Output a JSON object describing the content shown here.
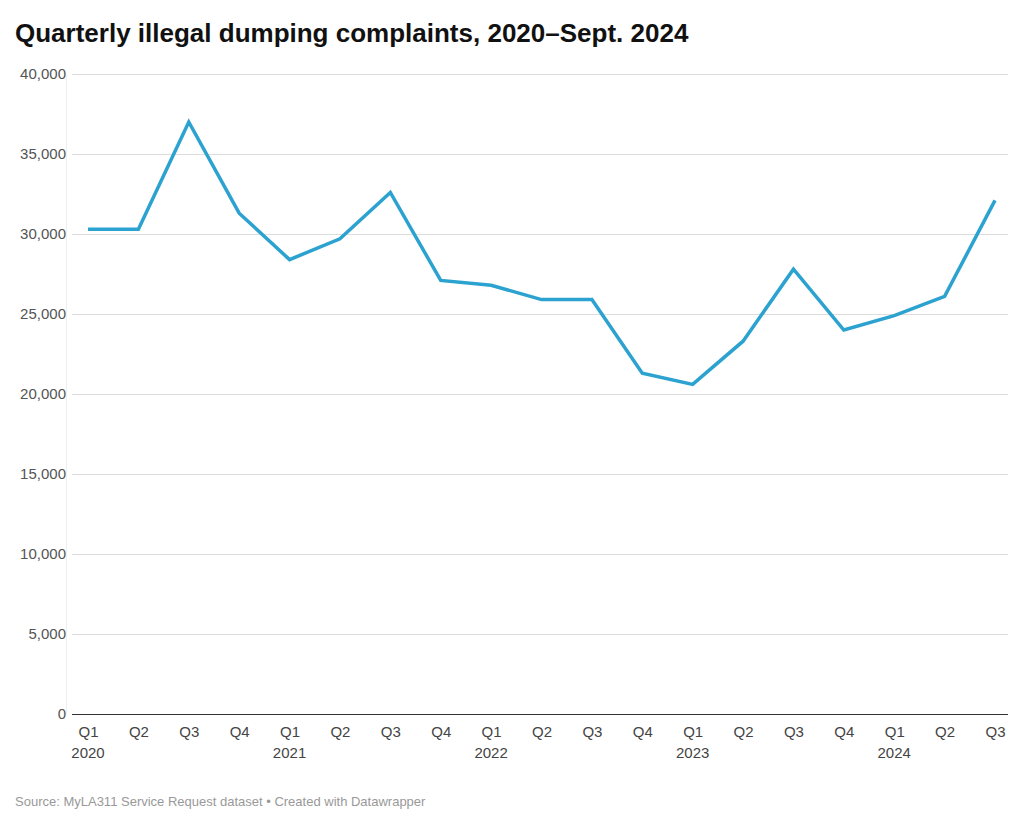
{
  "chart_data": {
    "type": "line",
    "title": "Quarterly illegal dumping complaints, 2020–Sept. 2024",
    "source": "Source: MyLA311 Service Request dataset • Created with Datawrapper",
    "categories": [
      "Q1",
      "Q2",
      "Q3",
      "Q4",
      "Q1",
      "Q2",
      "Q3",
      "Q4",
      "Q1",
      "Q2",
      "Q3",
      "Q4",
      "Q1",
      "Q2",
      "Q3",
      "Q4",
      "Q1",
      "Q2",
      "Q3"
    ],
    "year_labels": [
      "2020",
      null,
      null,
      null,
      "2021",
      null,
      null,
      null,
      "2022",
      null,
      null,
      null,
      "2023",
      null,
      null,
      null,
      "2024",
      null,
      null
    ],
    "values": [
      30300,
      30300,
      37000,
      31300,
      28400,
      29700,
      32600,
      27100,
      26800,
      25900,
      25900,
      21300,
      20600,
      23300,
      27800,
      24000,
      24900,
      26100,
      32100
    ],
    "color": "#2ba2cf",
    "ylim": [
      0,
      40000
    ],
    "yticks": [
      0,
      {
        "value": 5000,
        "label": "5,000"
      },
      {
        "value": 10000,
        "label": "10,000"
      },
      {
        "value": 15000,
        "label": "15,000"
      },
      {
        "value": 20000,
        "label": "20,000"
      },
      {
        "value": 25000,
        "label": "25,000"
      },
      {
        "value": 30000,
        "label": "30,000"
      },
      {
        "value": 35000,
        "label": "35,000"
      },
      {
        "value": 40000,
        "label": "40,000"
      }
    ],
    "grid": true
  }
}
